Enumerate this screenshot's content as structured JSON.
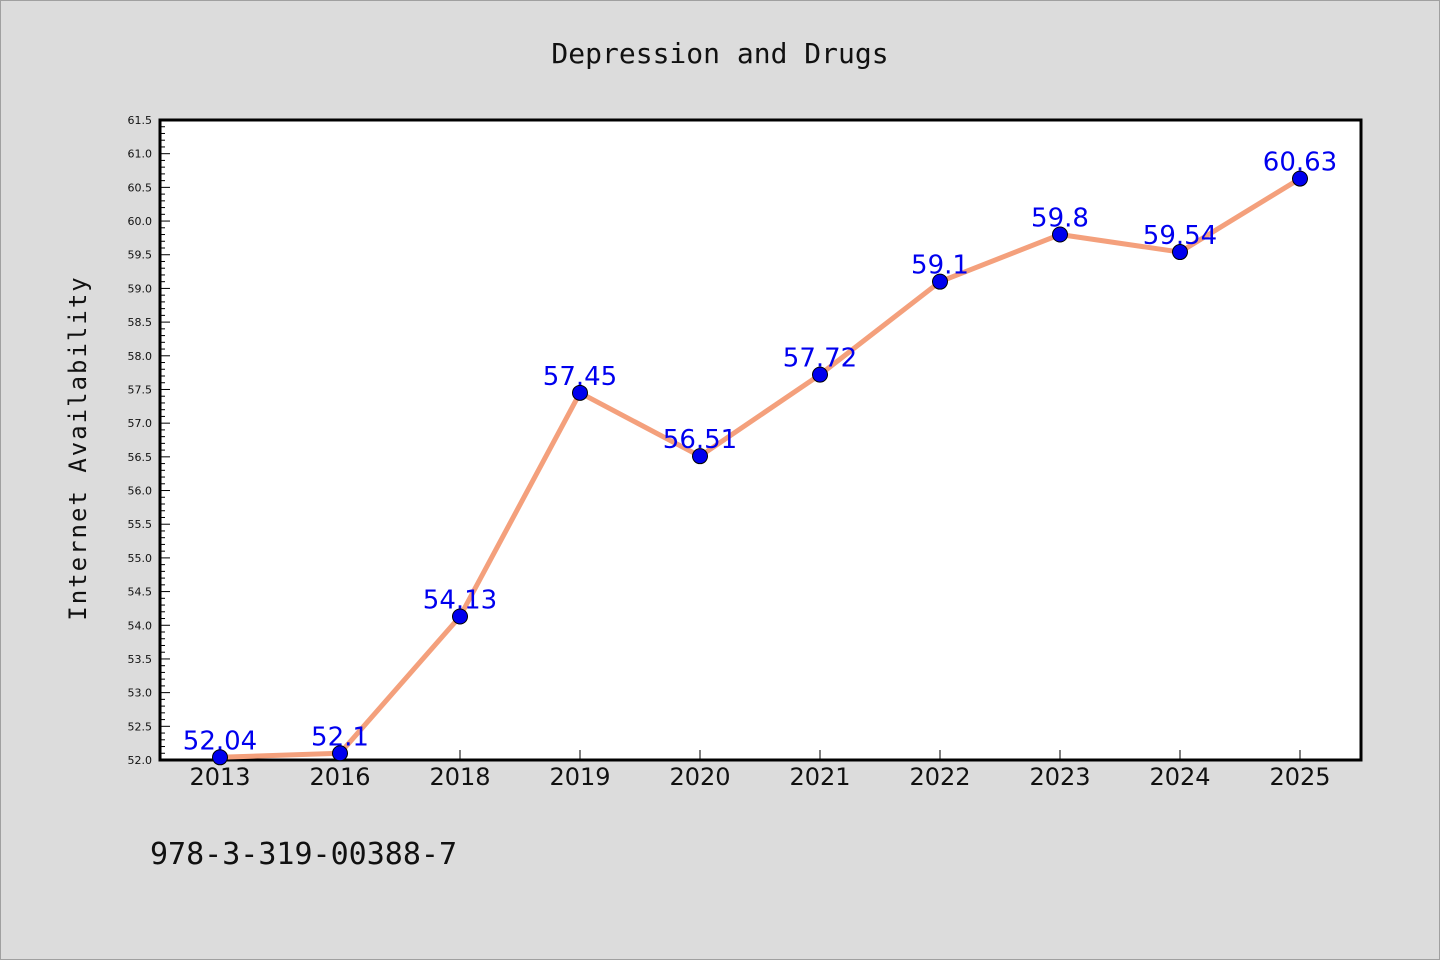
{
  "chart_data": {
    "type": "line",
    "title": "Depression and Drugs",
    "xlabel": "",
    "ylabel": "Internet Availability",
    "categories": [
      "2013",
      "2016",
      "2018",
      "2019",
      "2020",
      "2021",
      "2022",
      "2023",
      "2024",
      "2025"
    ],
    "values": [
      52.04,
      52.1,
      54.13,
      57.45,
      56.51,
      57.72,
      59.1,
      59.8,
      59.54,
      60.63
    ],
    "data_labels": [
      "52.04",
      "52.1",
      "54.13",
      "57.45",
      "56.51",
      "57.72",
      "59.1",
      "59.8",
      "59.54",
      "60.63"
    ],
    "ylim": [
      52.0,
      61.5
    ],
    "yticks": [
      "52.0",
      "52.5",
      "53.0",
      "53.5",
      "54.0",
      "54.5",
      "55.0",
      "55.5",
      "56.0",
      "56.5",
      "57.0",
      "57.5",
      "58.0",
      "58.5",
      "59.0",
      "59.5",
      "60.0",
      "60.5",
      "61.0",
      "61.5"
    ],
    "grid": false,
    "line_color": "#f4a07c",
    "marker_color": "#0000ee",
    "label_color": "#0000ee",
    "background": "#dcdcdc",
    "plot_background": "#ffffff"
  },
  "footer": {
    "text": "978-3-319-00388-7"
  }
}
